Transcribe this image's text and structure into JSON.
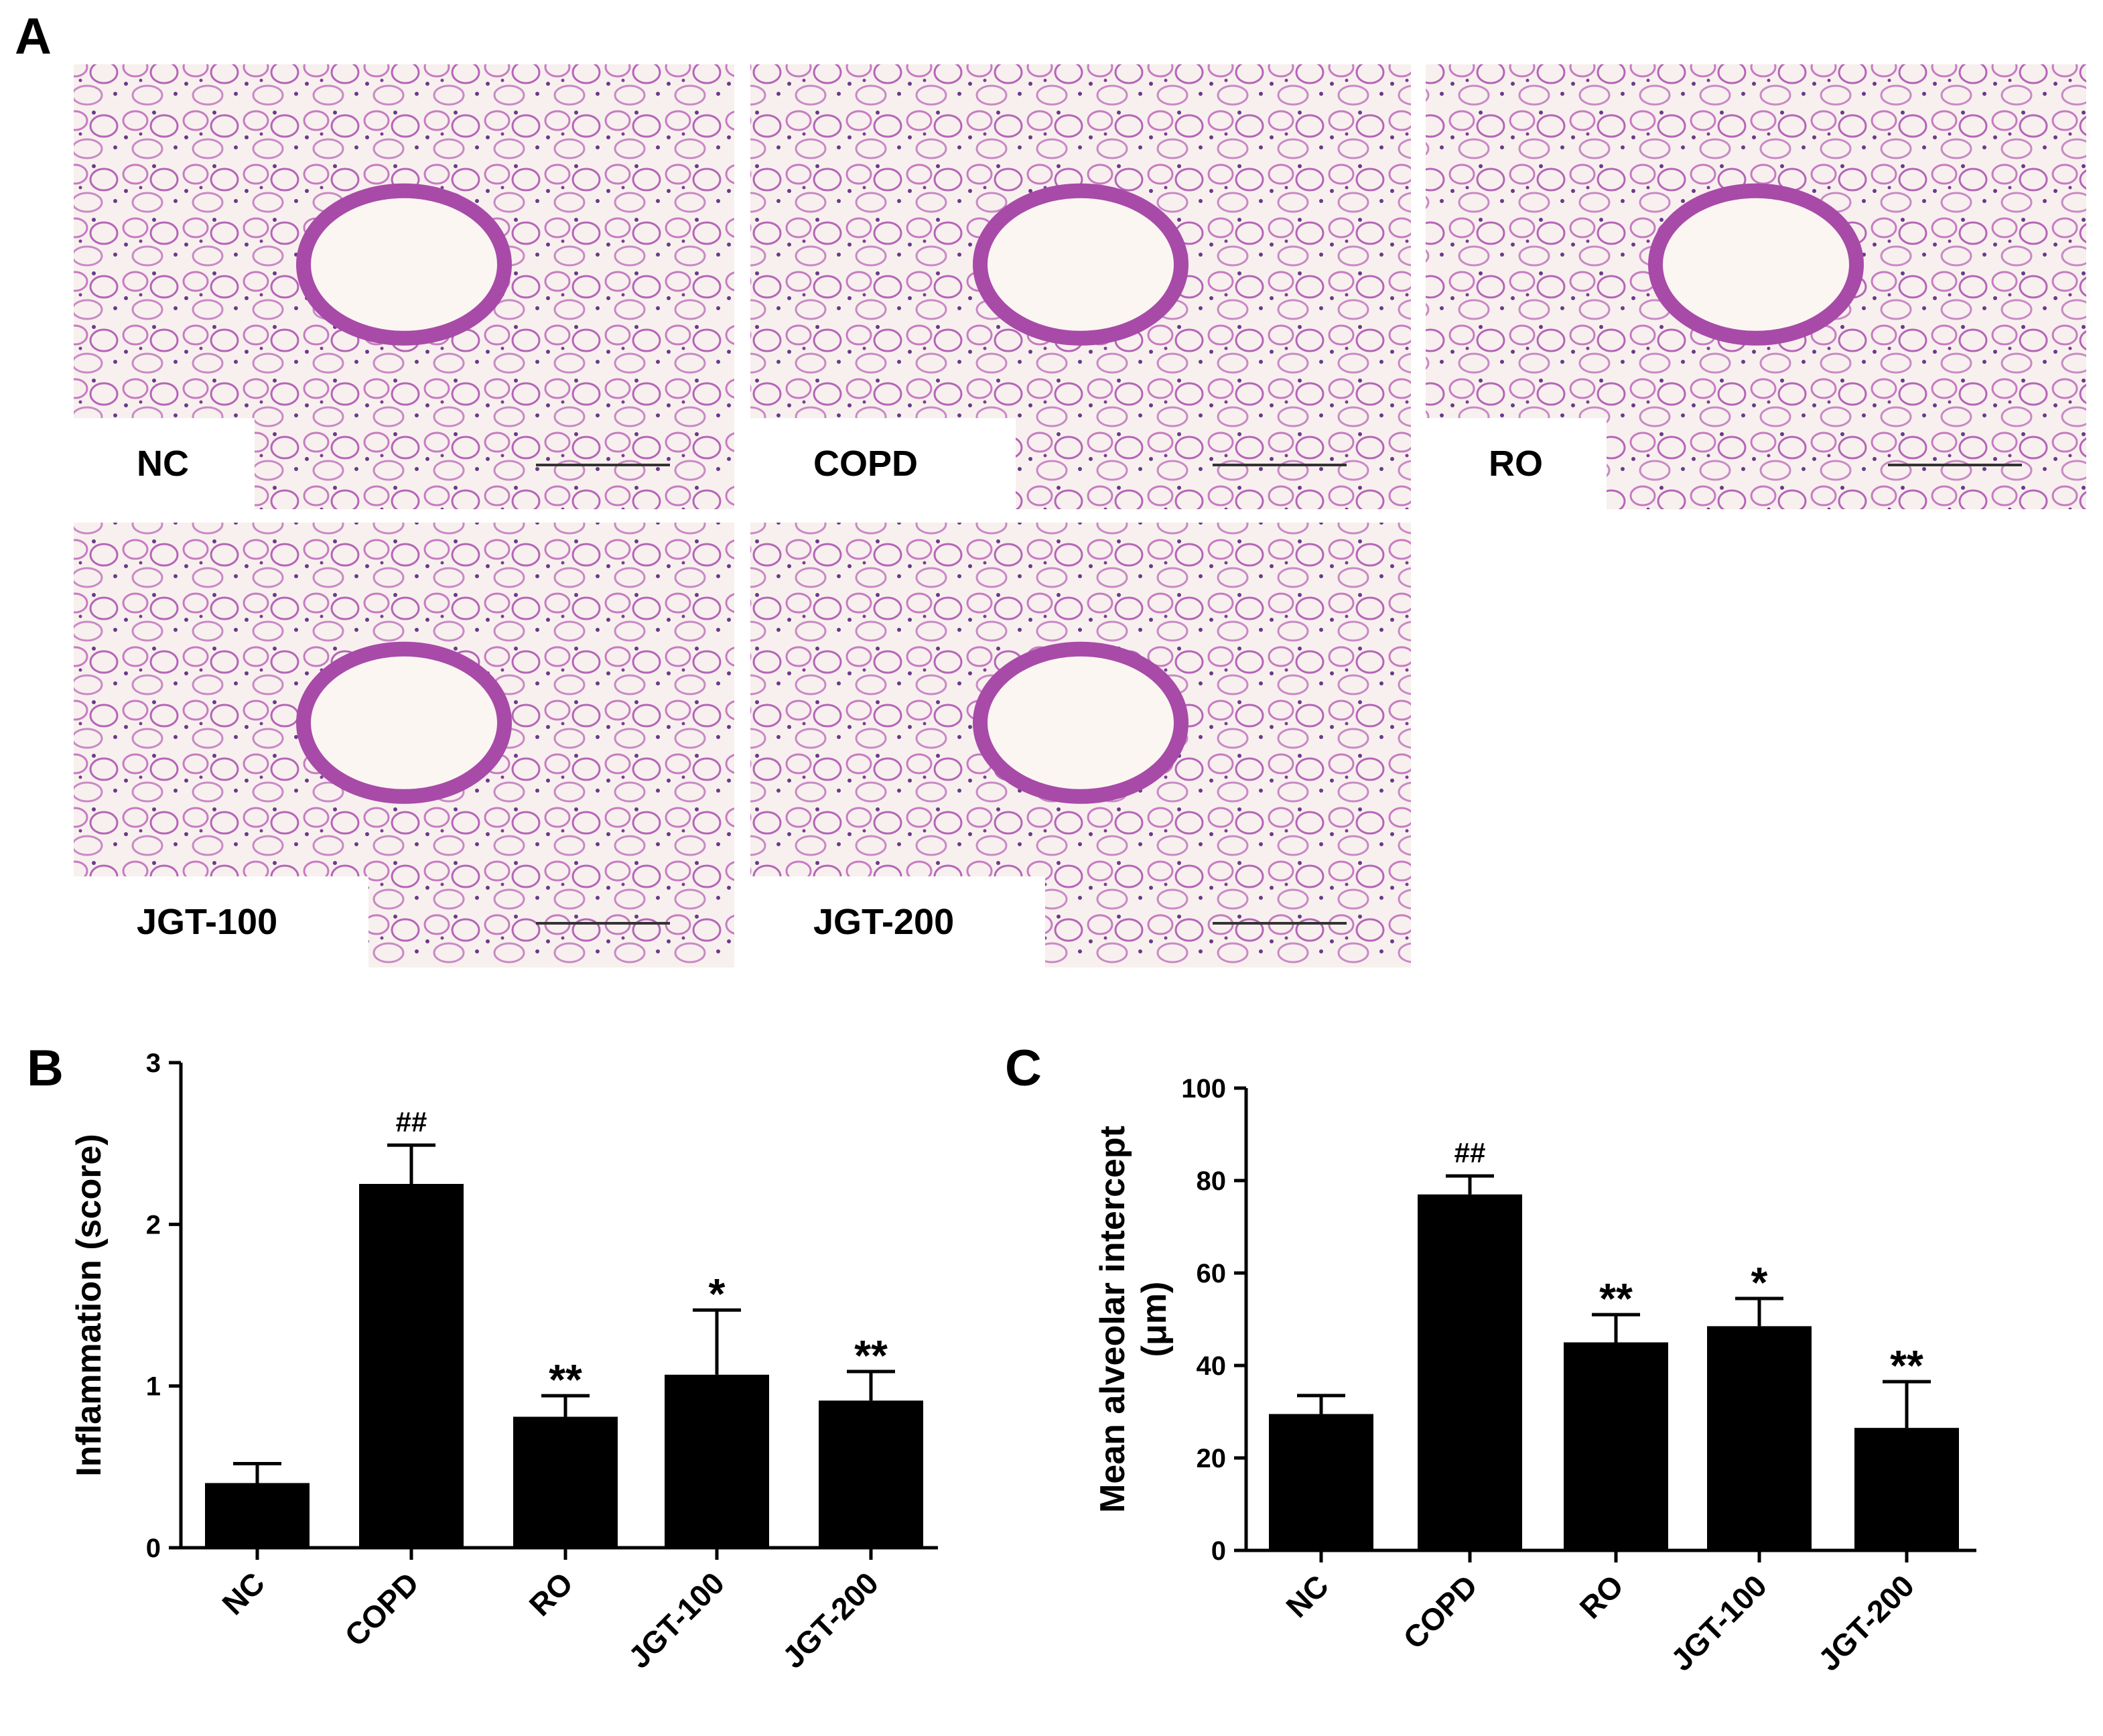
{
  "figure_panel": "A",
  "micrographs": [
    "NC",
    "COPD",
    "RO",
    "JGT-100",
    "JGT-200"
  ],
  "chart_data": [
    {
      "type": "bar",
      "panel_label": "B",
      "ylabel": [
        "Inflammation (score)"
      ],
      "categories": [
        "NC",
        "COPD",
        "RO",
        "JGT-100",
        "JGT-200"
      ],
      "values": [
        0.4,
        2.25,
        0.81,
        1.07,
        0.91
      ],
      "errors": [
        0.12,
        0.24,
        0.13,
        0.4,
        0.18
      ],
      "annotations": [
        null,
        "##",
        "**",
        "*",
        "**"
      ],
      "color": "#000000",
      "ylim": [
        0,
        3
      ],
      "yticks": [
        0,
        1,
        2,
        3
      ]
    },
    {
      "type": "bar",
      "panel_label": "C",
      "ylabel": [
        "Mean alveolar intercept",
        "(μm)"
      ],
      "categories": [
        "NC",
        "COPD",
        "RO",
        "JGT-100",
        "JGT-200"
      ],
      "values": [
        29.5,
        77,
        45,
        48.5,
        26.5
      ],
      "errors": [
        4,
        4,
        6,
        6,
        10
      ],
      "annotations": [
        null,
        "##",
        "**",
        "*",
        "**"
      ],
      "color": "#000000",
      "ylim": [
        0,
        100
      ],
      "yticks": [
        0,
        20,
        40,
        60,
        80,
        100
      ]
    }
  ]
}
